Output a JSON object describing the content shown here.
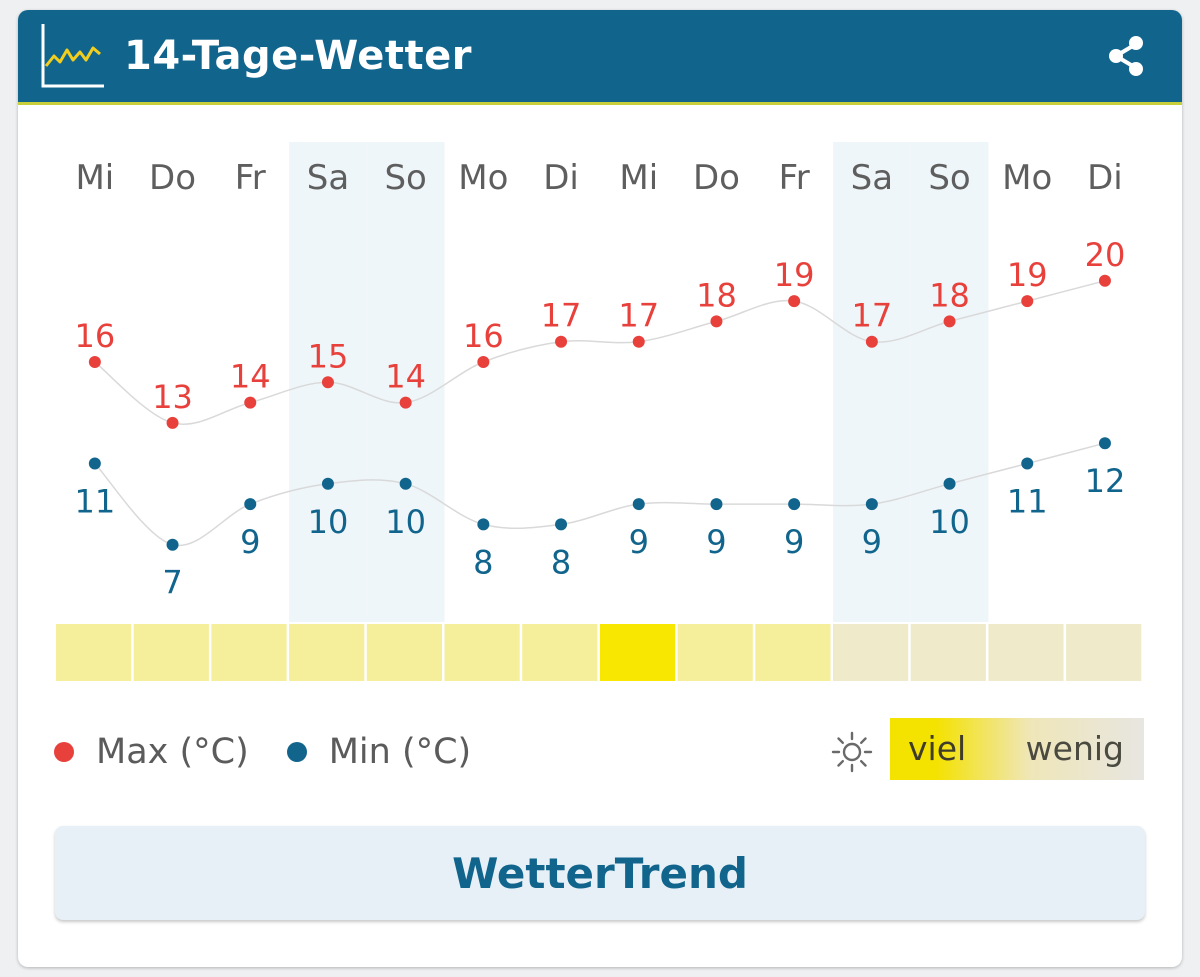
{
  "header": {
    "title": "14-Tage-Wetter",
    "logo_icon": "temperature-graph-icon",
    "share_icon": "share-icon"
  },
  "chart_data": {
    "type": "line",
    "categories": [
      "Mi",
      "Do",
      "Fr",
      "Sa",
      "So",
      "Mo",
      "Di",
      "Mi",
      "Do",
      "Fr",
      "Sa",
      "So",
      "Mo",
      "Di"
    ],
    "weekend_indices": [
      3,
      4,
      10,
      11
    ],
    "series": [
      {
        "name": "Max (°C)",
        "color": "#e8413c",
        "values": [
          16,
          13,
          14,
          15,
          14,
          16,
          17,
          17,
          18,
          19,
          17,
          18,
          19,
          20
        ]
      },
      {
        "name": "Min (°C)",
        "color": "#11658d",
        "values": [
          11,
          7,
          9,
          10,
          10,
          8,
          8,
          9,
          9,
          9,
          9,
          10,
          11,
          12
        ]
      }
    ],
    "sunshine_levels": [
      0.6,
      0.6,
      0.6,
      0.6,
      0.6,
      0.6,
      0.6,
      1.0,
      0.6,
      0.6,
      0.25,
      0.25,
      0.25,
      0.25
    ]
  },
  "legend": {
    "max_label": "Max (°C)",
    "min_label": "Min (°C)",
    "max_color": "#e8413c",
    "min_color": "#11658d",
    "sun_icon": "sun-icon",
    "sun_high": "viel",
    "sun_low": "wenig"
  },
  "button": {
    "label": "WetterTrend"
  },
  "colors": {
    "header_bg": "#11658d",
    "weekend_bg": "#eff6fa",
    "sun_high": "#f8e700",
    "sun_mid": "#f5ee9a",
    "sun_low": "#efebca"
  }
}
